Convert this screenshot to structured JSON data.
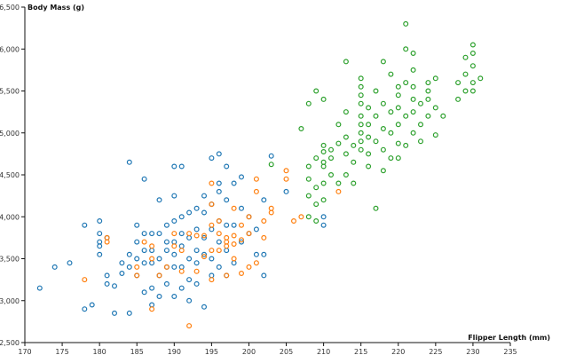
{
  "chart_data": {
    "type": "scatter",
    "title": "",
    "xlabel": "Flipper Length (mm)",
    "ylabel": "Body Mass (g)",
    "xlim": [
      170,
      235
    ],
    "ylim": [
      2500,
      6500
    ],
    "x_ticks": [
      170,
      175,
      180,
      185,
      190,
      195,
      200,
      205,
      210,
      215,
      220,
      225,
      230,
      235
    ],
    "y_ticks": [
      2500,
      3000,
      3500,
      4000,
      4500,
      5000,
      5500,
      6000,
      6500
    ],
    "x_tick_labels": [
      "170",
      "175",
      "180",
      "185",
      "190",
      "195",
      "200",
      "205",
      "210",
      "215",
      "220",
      "225",
      "230",
      "235"
    ],
    "y_tick_labels": [
      "2,500",
      "3,000",
      "3,500",
      "4,000",
      "4,500",
      "5,000",
      "5,500",
      "6,000",
      "6,500"
    ],
    "grid": false,
    "legend": "none",
    "series": [
      {
        "color": "#1f77b4",
        "points": [
          [
            172,
            3150
          ],
          [
            174,
            3400
          ],
          [
            176,
            3450
          ],
          [
            178,
            2900
          ],
          [
            178,
            3900
          ],
          [
            179,
            2950
          ],
          [
            180,
            3550
          ],
          [
            180,
            3650
          ],
          [
            180,
            3700
          ],
          [
            180,
            3800
          ],
          [
            180,
            3950
          ],
          [
            181,
            3200
          ],
          [
            181,
            3300
          ],
          [
            181,
            3750
          ],
          [
            182,
            2850
          ],
          [
            182,
            3175
          ],
          [
            183,
            3325
          ],
          [
            183,
            3450
          ],
          [
            184,
            2850
          ],
          [
            184,
            3400
          ],
          [
            184,
            3550
          ],
          [
            184,
            4650
          ],
          [
            185,
            3300
          ],
          [
            185,
            3500
          ],
          [
            185,
            3700
          ],
          [
            185,
            3900
          ],
          [
            186,
            3100
          ],
          [
            186,
            3450
          ],
          [
            186,
            3600
          ],
          [
            186,
            3800
          ],
          [
            186,
            4450
          ],
          [
            187,
            2950
          ],
          [
            187,
            3150
          ],
          [
            187,
            3450
          ],
          [
            187,
            3600
          ],
          [
            187,
            3800
          ],
          [
            188,
            3050
          ],
          [
            188,
            3300
          ],
          [
            188,
            3500
          ],
          [
            188,
            3800
          ],
          [
            188,
            4200
          ],
          [
            189,
            3200
          ],
          [
            189,
            3400
          ],
          [
            189,
            3600
          ],
          [
            189,
            3700
          ],
          [
            189,
            3900
          ],
          [
            190,
            3050
          ],
          [
            190,
            3400
          ],
          [
            190,
            3550
          ],
          [
            190,
            3700
          ],
          [
            190,
            3950
          ],
          [
            190,
            4250
          ],
          [
            190,
            4600
          ],
          [
            191,
            3150
          ],
          [
            191,
            3400
          ],
          [
            191,
            3650
          ],
          [
            191,
            3800
          ],
          [
            191,
            4000
          ],
          [
            191,
            4600
          ],
          [
            192,
            3000
          ],
          [
            192,
            3250
          ],
          [
            192,
            3500
          ],
          [
            192,
            3750
          ],
          [
            192,
            4050
          ],
          [
            193,
            3200
          ],
          [
            193,
            3450
          ],
          [
            193,
            3600
          ],
          [
            193,
            3850
          ],
          [
            193,
            4100
          ],
          [
            194,
            2925
          ],
          [
            194,
            3550
          ],
          [
            194,
            3750
          ],
          [
            194,
            4050
          ],
          [
            194,
            4250
          ],
          [
            195,
            3300
          ],
          [
            195,
            3500
          ],
          [
            195,
            3850
          ],
          [
            195,
            4150
          ],
          [
            195,
            4700
          ],
          [
            196,
            3400
          ],
          [
            196,
            3700
          ],
          [
            196,
            3950
          ],
          [
            196,
            4300
          ],
          [
            196,
            4400
          ],
          [
            196,
            4750
          ],
          [
            197,
            3300
          ],
          [
            197,
            3600
          ],
          [
            197,
            3900
          ],
          [
            197,
            4200
          ],
          [
            197,
            4600
          ],
          [
            198,
            3450
          ],
          [
            198,
            3900
          ],
          [
            198,
            4400
          ],
          [
            199,
            3700
          ],
          [
            199,
            4100
          ],
          [
            199,
            4475
          ],
          [
            200,
            3800
          ],
          [
            200,
            4000
          ],
          [
            201,
            3550
          ],
          [
            201,
            3850
          ],
          [
            202,
            3300
          ],
          [
            202,
            3550
          ],
          [
            202,
            4200
          ],
          [
            203,
            4725
          ],
          [
            205,
            4300
          ],
          [
            210,
            3900
          ],
          [
            210,
            4000
          ]
        ]
      },
      {
        "color": "#ff7f0e",
        "points": [
          [
            178,
            3250
          ],
          [
            181,
            3700
          ],
          [
            181,
            3750
          ],
          [
            185,
            3300
          ],
          [
            185,
            3400
          ],
          [
            186,
            3700
          ],
          [
            187,
            2900
          ],
          [
            187,
            3500
          ],
          [
            187,
            3650
          ],
          [
            188,
            3300
          ],
          [
            189,
            3400
          ],
          [
            190,
            3650
          ],
          [
            190,
            3800
          ],
          [
            191,
            3350
          ],
          [
            191,
            3600
          ],
          [
            192,
            2700
          ],
          [
            192,
            3800
          ],
          [
            193,
            3350
          ],
          [
            193,
            3775
          ],
          [
            194,
            3525
          ],
          [
            194,
            3775
          ],
          [
            195,
            3250
          ],
          [
            195,
            3600
          ],
          [
            195,
            3900
          ],
          [
            195,
            4150
          ],
          [
            195,
            4400
          ],
          [
            196,
            3600
          ],
          [
            196,
            3800
          ],
          [
            196,
            3950
          ],
          [
            197,
            3300
          ],
          [
            197,
            3650
          ],
          [
            197,
            3700
          ],
          [
            197,
            3750
          ],
          [
            198,
            3500
          ],
          [
            198,
            3675
          ],
          [
            198,
            3775
          ],
          [
            198,
            4100
          ],
          [
            199,
            3325
          ],
          [
            199,
            3725
          ],
          [
            199,
            3900
          ],
          [
            200,
            3400
          ],
          [
            200,
            3800
          ],
          [
            200,
            4000
          ],
          [
            201,
            3450
          ],
          [
            201,
            4300
          ],
          [
            201,
            4450
          ],
          [
            202,
            3750
          ],
          [
            202,
            3950
          ],
          [
            203,
            4050
          ],
          [
            203,
            4100
          ],
          [
            205,
            4450
          ],
          [
            205,
            4550
          ],
          [
            206,
            3950
          ],
          [
            207,
            4000
          ],
          [
            212,
            4300
          ]
        ]
      },
      {
        "color": "#2ca02c",
        "points": [
          [
            203,
            4625
          ],
          [
            207,
            5050
          ],
          [
            208,
            4450
          ],
          [
            208,
            5350
          ],
          [
            208,
            4250
          ],
          [
            208,
            4600
          ],
          [
            208,
            4000
          ],
          [
            209,
            3950
          ],
          [
            209,
            4150
          ],
          [
            209,
            4350
          ],
          [
            209,
            4700
          ],
          [
            209,
            5500
          ],
          [
            210,
            4200
          ],
          [
            210,
            4400
          ],
          [
            210,
            4600
          ],
          [
            210,
            4650
          ],
          [
            210,
            4775
          ],
          [
            210,
            4850
          ],
          [
            210,
            5400
          ],
          [
            211,
            4500
          ],
          [
            211,
            4700
          ],
          [
            211,
            4800
          ],
          [
            212,
            4400
          ],
          [
            212,
            4875
          ],
          [
            212,
            5100
          ],
          [
            213,
            4500
          ],
          [
            213,
            4750
          ],
          [
            213,
            4950
          ],
          [
            213,
            5250
          ],
          [
            213,
            5850
          ],
          [
            214,
            4400
          ],
          [
            214,
            4650
          ],
          [
            214,
            4850
          ],
          [
            215,
            4800
          ],
          [
            215,
            4900
          ],
          [
            215,
            5000
          ],
          [
            215,
            5100
          ],
          [
            215,
            5200
          ],
          [
            215,
            5350
          ],
          [
            215,
            5450
          ],
          [
            215,
            5550
          ],
          [
            215,
            5650
          ],
          [
            216,
            4600
          ],
          [
            216,
            4750
          ],
          [
            216,
            4950
          ],
          [
            216,
            5100
          ],
          [
            216,
            5300
          ],
          [
            217,
            4100
          ],
          [
            217,
            4900
          ],
          [
            217,
            5200
          ],
          [
            217,
            5500
          ],
          [
            218,
            4550
          ],
          [
            218,
            4800
          ],
          [
            218,
            5050
          ],
          [
            218,
            5350
          ],
          [
            218,
            5850
          ],
          [
            219,
            4700
          ],
          [
            219,
            5000
          ],
          [
            219,
            5250
          ],
          [
            219,
            5700
          ],
          [
            220,
            4700
          ],
          [
            220,
            4875
          ],
          [
            220,
            5100
          ],
          [
            220,
            5300
          ],
          [
            220,
            5450
          ],
          [
            220,
            5550
          ],
          [
            221,
            4850
          ],
          [
            221,
            5200
          ],
          [
            221,
            5600
          ],
          [
            221,
            6000
          ],
          [
            221,
            6300
          ],
          [
            222,
            5000
          ],
          [
            222,
            5250
          ],
          [
            222,
            5400
          ],
          [
            222,
            5550
          ],
          [
            222,
            5750
          ],
          [
            222,
            5950
          ],
          [
            223,
            4900
          ],
          [
            223,
            5100
          ],
          [
            223,
            5350
          ],
          [
            224,
            5200
          ],
          [
            224,
            5400
          ],
          [
            224,
            5500
          ],
          [
            224,
            5600
          ],
          [
            225,
            4975
          ],
          [
            225,
            5300
          ],
          [
            225,
            5650
          ],
          [
            226,
            5200
          ],
          [
            228,
            5400
          ],
          [
            228,
            5600
          ],
          [
            229,
            5500
          ],
          [
            229,
            5700
          ],
          [
            229,
            5900
          ],
          [
            230,
            5500
          ],
          [
            230,
            5600
          ],
          [
            230,
            5800
          ],
          [
            230,
            5950
          ],
          [
            230,
            6050
          ],
          [
            231,
            5650
          ]
        ]
      }
    ]
  }
}
